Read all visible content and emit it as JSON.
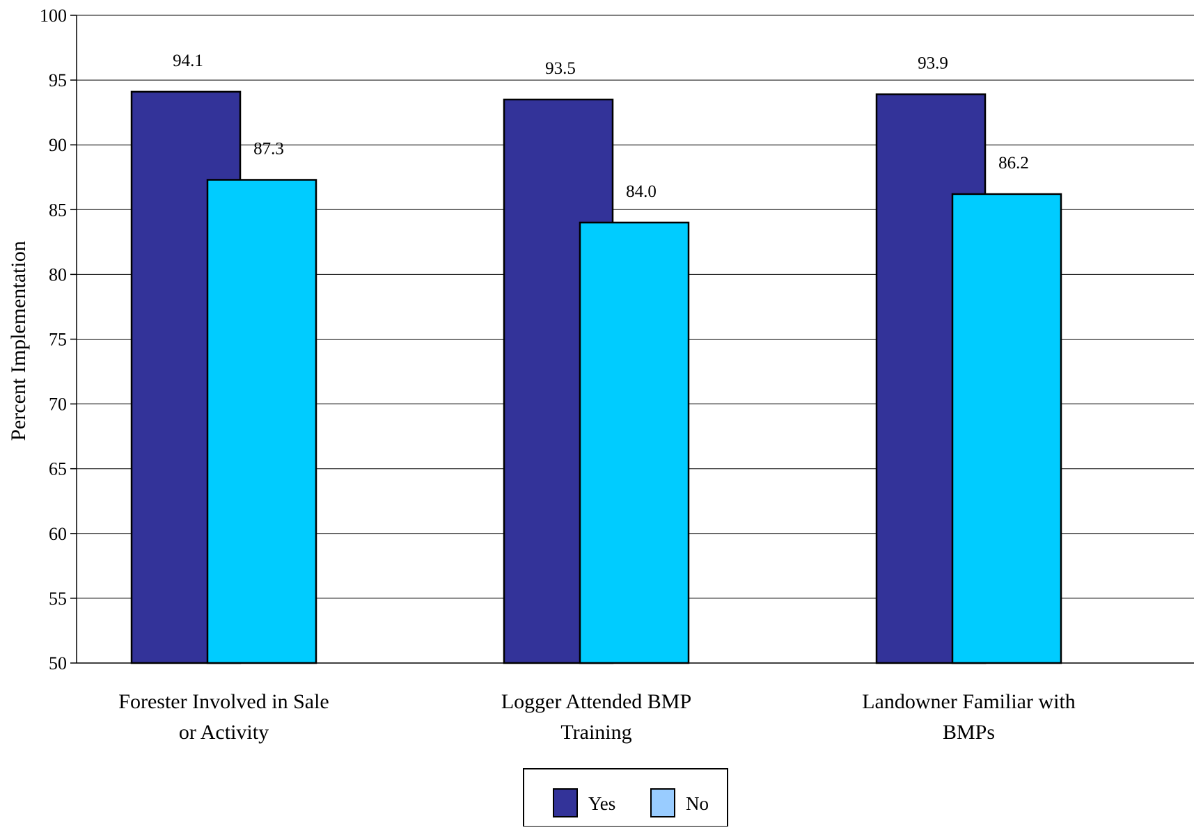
{
  "chart_data": {
    "type": "bar",
    "title": "",
    "xlabel": "",
    "ylabel": "Percent Implementation",
    "ylim": [
      50,
      100
    ],
    "yticks": [
      50,
      55,
      60,
      65,
      70,
      75,
      80,
      85,
      90,
      95,
      100
    ],
    "grid": true,
    "legend_position": "bottom",
    "categories": [
      [
        "Forester Involved in Sale",
        "or Activity"
      ],
      [
        "Logger Attended BMP",
        "Training"
      ],
      [
        "Landowner Familiar with",
        "BMPs"
      ]
    ],
    "series": [
      {
        "name": "Yes",
        "color": "#333399",
        "values": [
          94.1,
          93.5,
          93.9
        ],
        "labels": [
          "94.1",
          "93.5",
          "93.9"
        ]
      },
      {
        "name": "No",
        "color": "#00CCFF",
        "legend_color": "#99CCFF",
        "values": [
          87.3,
          84.0,
          86.2
        ],
        "labels": [
          "87.3",
          "84.0",
          "86.2"
        ]
      }
    ]
  }
}
